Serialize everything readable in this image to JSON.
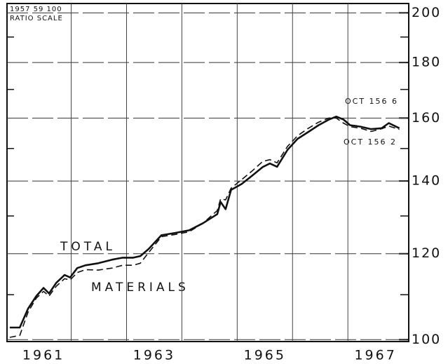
{
  "chart_data": {
    "type": "line",
    "annotations": [
      "1957 59 100",
      "RATIO SCALE",
      "TOTAL",
      "MATERIALS",
      "OCT 156 6",
      "OCT 156 2"
    ],
    "x": [
      1960.89,
      1961.07,
      1961.22,
      1961.37,
      1961.5,
      1961.6,
      1961.73,
      1961.88,
      1961.98,
      1962.11,
      1962.26,
      1962.49,
      1962.74,
      1962.93,
      1963.12,
      1963.25,
      1963.4,
      1963.63,
      1963.88,
      1964.13,
      1964.38,
      1964.64,
      1964.7,
      1964.79,
      1964.89,
      1965.08,
      1965.27,
      1965.46,
      1965.59,
      1965.72,
      1965.91,
      1966.09,
      1966.28,
      1966.47,
      1966.66,
      1966.79,
      1966.92,
      1967.04,
      1967.23,
      1967.42,
      1967.61,
      1967.74,
      1967.93
    ],
    "series": [
      {
        "name": "TOTAL",
        "color": "#111111",
        "dash": false,
        "values": [
          102.6,
          102.6,
          106.8,
          109.7,
          111.6,
          110.3,
          112.8,
          114.7,
          114.1,
          116.4,
          117.1,
          117.6,
          118.5,
          119.0,
          119.0,
          119.4,
          121.2,
          124.8,
          125.4,
          126.1,
          128.0,
          130.5,
          133.9,
          131.9,
          137.4,
          139.1,
          141.6,
          144.2,
          145.3,
          144.3,
          149.6,
          153.1,
          155.3,
          157.6,
          159.5,
          160.5,
          159.5,
          157.6,
          157.1,
          156.3,
          156.6,
          158.3,
          156.6
        ]
      },
      {
        "name": "MATERIALS",
        "color": "#111111",
        "dash": true,
        "values": [
          100.5,
          100.9,
          106.0,
          109.2,
          110.8,
          109.7,
          112.0,
          113.8,
          113.5,
          115.3,
          116.0,
          115.9,
          116.4,
          117.1,
          117.1,
          117.6,
          120.3,
          124.4,
          125.0,
          125.7,
          128.0,
          131.5,
          134.8,
          134.5,
          137.9,
          140.4,
          143.0,
          145.9,
          146.5,
          145.5,
          150.7,
          154.1,
          156.5,
          158.6,
          160.0,
          160.0,
          158.3,
          157.1,
          156.6,
          155.5,
          156.4,
          157.3,
          156.2
        ]
      }
    ],
    "log_scale": true,
    "xlim": [
      1960.84,
      1968.1
    ],
    "xticks": [
      {
        "value": 1961.5,
        "label": "1961"
      },
      {
        "value": 1963.5,
        "label": "1963"
      },
      {
        "value": 1965.5,
        "label": "1965"
      },
      {
        "value": 1967.5,
        "label": "1967"
      }
    ],
    "xgrid": [
      1962,
      1963,
      1964,
      1965,
      1966,
      1967
    ],
    "ylim": [
      99.6,
      204
    ],
    "yticks": [
      100,
      120,
      140,
      160,
      180,
      200
    ],
    "yminor": [
      110,
      130,
      150,
      170,
      190
    ],
    "grid": true
  }
}
